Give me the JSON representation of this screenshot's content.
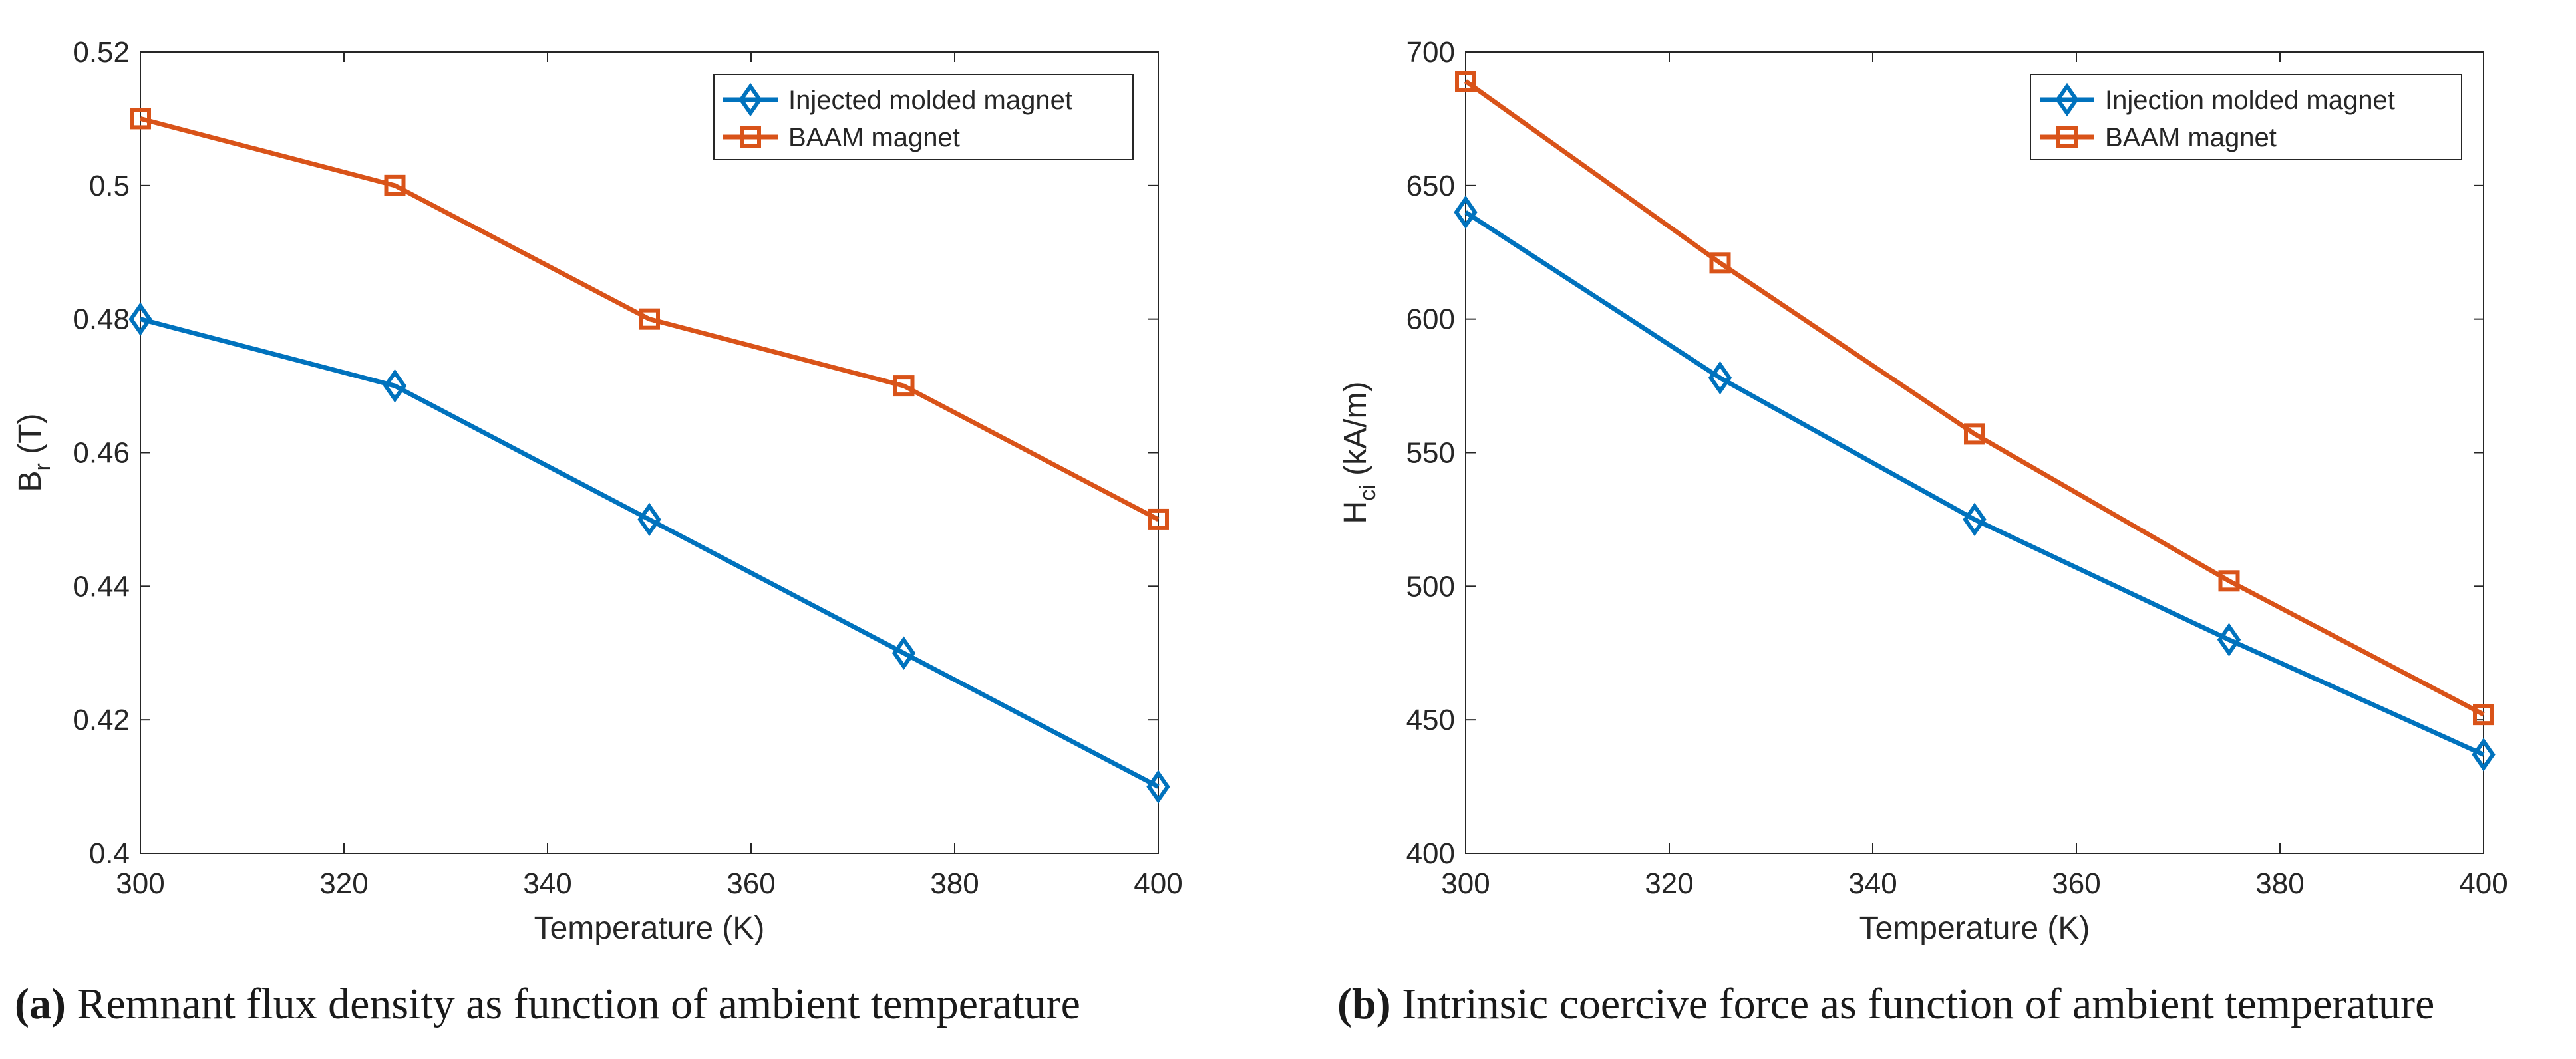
{
  "chart_data": [
    {
      "type": "line",
      "title": "",
      "xlabel": "Temperature (K)",
      "ylabel_main": "B",
      "ylabel_sub": "r",
      "ylabel_unit": "(T)",
      "x": [
        300,
        325,
        350,
        375,
        400
      ],
      "xlim": [
        300,
        400
      ],
      "ylim": [
        0.4,
        0.52
      ],
      "xticks": [
        300,
        320,
        340,
        360,
        380,
        400
      ],
      "xtick_labels": [
        "300",
        "320",
        "340",
        "360",
        "380",
        "400"
      ],
      "yticks": [
        0.4,
        0.42,
        0.44,
        0.46,
        0.48,
        0.5,
        0.52
      ],
      "ytick_labels": [
        "0.4",
        "0.42",
        "0.44",
        "0.46",
        "0.48",
        "0.5",
        "0.52"
      ],
      "grid": false,
      "legend_position": "top-right",
      "series": [
        {
          "name": "Injected molded magnet",
          "values": [
            0.48,
            0.47,
            0.45,
            0.43,
            0.41
          ],
          "color": "#0072BD",
          "marker": "diamond"
        },
        {
          "name": "BAAM magnet",
          "values": [
            0.51,
            0.5,
            0.48,
            0.47,
            0.45
          ],
          "color": "#D95319",
          "marker": "square"
        }
      ],
      "caption_label": "(a)",
      "caption_text": "Remnant flux density as function of ambient temperature"
    },
    {
      "type": "line",
      "title": "",
      "xlabel": "Temperature (K)",
      "ylabel_main": "H",
      "ylabel_sub": "ci",
      "ylabel_unit": "(kA/m)",
      "x": [
        300,
        325,
        350,
        375,
        400
      ],
      "xlim": [
        300,
        400
      ],
      "ylim": [
        400,
        700
      ],
      "xticks": [
        300,
        320,
        340,
        360,
        380,
        400
      ],
      "xtick_labels": [
        "300",
        "320",
        "340",
        "360",
        "380",
        "400"
      ],
      "yticks": [
        400,
        450,
        500,
        550,
        600,
        650,
        700
      ],
      "ytick_labels": [
        "400",
        "450",
        "500",
        "550",
        "600",
        "650",
        "700"
      ],
      "grid": false,
      "legend_position": "top-right",
      "series": [
        {
          "name": "Injection molded magnet",
          "values": [
            640,
            578,
            525,
            480,
            437
          ],
          "color": "#0072BD",
          "marker": "diamond"
        },
        {
          "name": "BAAM magnet",
          "values": [
            689,
            621,
            557,
            502,
            452
          ],
          "color": "#D95319",
          "marker": "square"
        }
      ],
      "caption_label": "(b)",
      "caption_text": "Intrinsic coercive force as function of ambient temperature"
    }
  ]
}
